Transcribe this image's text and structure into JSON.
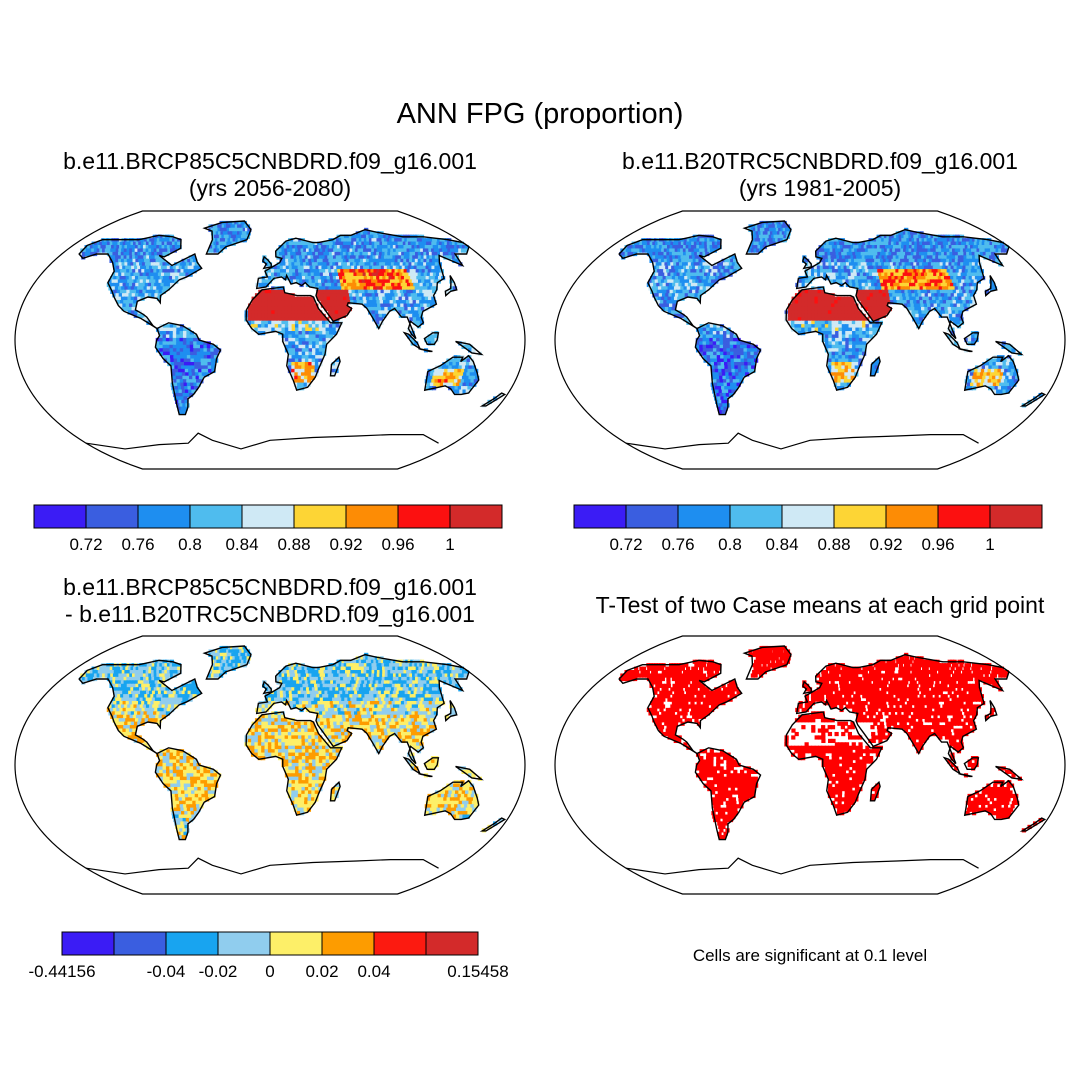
{
  "title": "ANN FPG (proportion)",
  "panels": [
    {
      "id": "case1",
      "title_line1": "b.e11.BRCP85C5CNBDRD.f09_g16.001",
      "title_line2": "(yrs 2056-2080)"
    },
    {
      "id": "case2",
      "title_line1": "b.e11.B20TRC5CNBDRD.f09_g16.001",
      "title_line2": "(yrs 1981-2005)"
    },
    {
      "id": "difference",
      "title_line1": "b.e11.BRCP85C5CNBDRD.f09_g16.001",
      "title_line2": "- b.e11.B20TRC5CNBDRD.f09_g16.001"
    },
    {
      "id": "ttest",
      "title_line1": "T-Test of two Case means at each grid point"
    }
  ],
  "colorbars": {
    "absolute": {
      "colors": [
        "#3b1cf5",
        "#3a5ee0",
        "#1e8ef0",
        "#4fbcee",
        "#cfe9f5",
        "#fdd535",
        "#fd8c05",
        "#fc1010",
        "#d32a2a"
      ],
      "labels": [
        "0.72",
        "0.76",
        "0.8",
        "0.84",
        "0.88",
        "0.92",
        "0.96",
        "1"
      ]
    },
    "difference": {
      "colors": [
        "#3b1cf5",
        "#3a5ee0",
        "#18a4f0",
        "#90cdee",
        "#fdef68",
        "#fd9c00",
        "#fc1a10",
        "#d32a2a"
      ],
      "labels": [
        "-0.44156",
        "",
        "-0.04",
        "-0.02",
        "0",
        "0.02",
        "0.04",
        "",
        "0.15458"
      ]
    }
  },
  "significance_note": "Cells are significant at 0.1 level",
  "significance_color": "#ff0000"
}
